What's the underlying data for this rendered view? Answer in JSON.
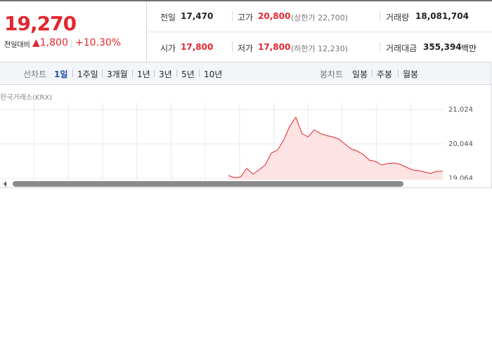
{
  "quote": {
    "price": "19,270",
    "change_label": "전일대비",
    "change": "▲1,800",
    "change_rate": "+10.30%"
  },
  "summary": [
    {
      "label": "전일",
      "value": "17,470"
    },
    {
      "label": "고가",
      "value": "20,800",
      "note": "(상한가 22,700)"
    },
    {
      "label": "거래량",
      "value": "18,081,704"
    },
    {
      "label": "시가",
      "value": "17,800"
    },
    {
      "label": "저가",
      "value": "17,800",
      "note": "(하한가 12,230)"
    },
    {
      "label": "거래대금",
      "value": "355,394",
      "unit": "백만"
    }
  ],
  "tabs": {
    "line_label": "선차트",
    "line": [
      "1일",
      "1주일",
      "3개월",
      "1년",
      "3년",
      "5년",
      "10년"
    ],
    "candle_label": "봉차트",
    "candle": [
      "일봉",
      "주봉",
      "월봉"
    ]
  },
  "chart_data": {
    "type": "line",
    "source": "한국거래소(KRX)",
    "color": "#e3262e",
    "grid": true,
    "ylim": [
      19064,
      21024
    ],
    "yticks": [
      {
        "value": 21024,
        "label": "21,024"
      },
      {
        "value": 20044,
        "label": "20,044"
      },
      {
        "value": 19064,
        "label": "19,064"
      }
    ],
    "values": [
      19144,
      19084,
      19104,
      19344,
      19184,
      19304,
      19444,
      19784,
      19864,
      20144,
      20544,
      20800,
      20344,
      20244,
      20444,
      20344,
      20284,
      20244,
      20184,
      20044,
      19904,
      19844,
      19744,
      19584,
      19544,
      19444,
      19484,
      19504,
      19464,
      19384,
      19304,
      19284,
      19244,
      19204,
      19264,
      19264
    ]
  }
}
